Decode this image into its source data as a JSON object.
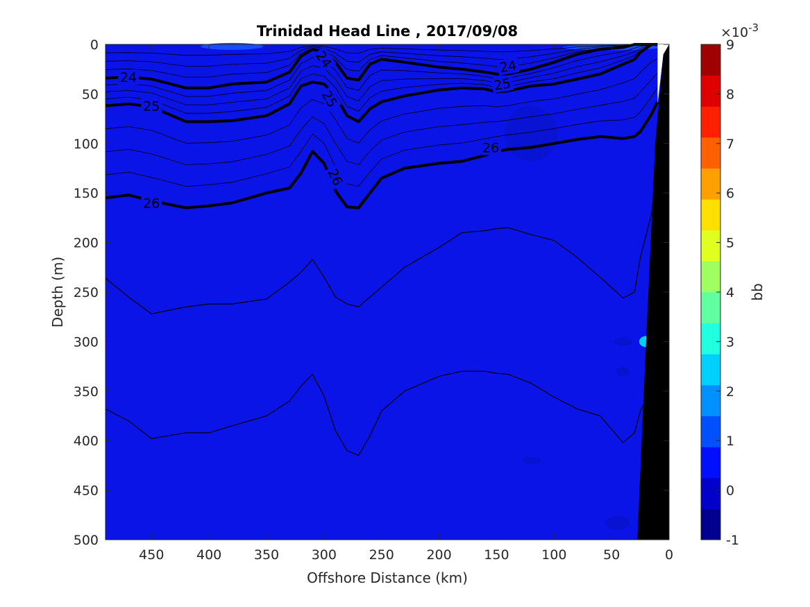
{
  "chart_data": {
    "type": "heatmap",
    "title": "Trinidad Head Line , 2017/09/08",
    "xlabel": "Offshore Distance (km)",
    "ylabel": "Depth (m)",
    "xlim": [
      490,
      0
    ],
    "ylim": [
      0,
      500
    ],
    "x_ticks": [
      450,
      400,
      350,
      300,
      250,
      200,
      150,
      100,
      50,
      0
    ],
    "y_ticks": [
      0,
      50,
      100,
      150,
      200,
      250,
      300,
      350,
      400,
      450,
      500
    ],
    "colorbar": {
      "label": "bb",
      "multiplier": "×10",
      "exponent": "-3",
      "range": [
        -1,
        9
      ],
      "ticks": [
        -1,
        0,
        1,
        2,
        3,
        4,
        5,
        6,
        7,
        8,
        9
      ],
      "levels": [
        "#00008f",
        "#0000c8",
        "#0010ff",
        "#0050ff",
        "#0090ff",
        "#00d0ff",
        "#20ffdf",
        "#60ff9f",
        "#a0ff60",
        "#dfff20",
        "#ffdf00",
        "#ffa000",
        "#ff6000",
        "#ff2000",
        "#df0000",
        "#9f0000"
      ]
    },
    "field_background_value": 0.3,
    "field_background_color": "#0a14e6",
    "surface_highlight_color": "#1a4cff",
    "station_x": [
      490,
      470,
      450,
      420,
      400,
      380,
      350,
      330,
      320,
      310,
      300,
      290,
      280,
      270,
      260,
      250,
      230,
      200,
      180,
      160,
      150,
      140,
      120,
      100,
      80,
      60,
      40,
      30,
      25,
      15,
      10
    ],
    "density_contours": [
      {
        "label": "24",
        "labeled": true,
        "depths": [
          34,
          33,
          35,
          44,
          44,
          40,
          38,
          28,
          12,
          5,
          8,
          18,
          34,
          36,
          20,
          15,
          18,
          23,
          25,
          28,
          30,
          30,
          25,
          18,
          10,
          5,
          3,
          0,
          0,
          0,
          0
        ]
      },
      {
        "label": "25",
        "labeled": true,
        "depths": [
          62,
          60,
          63,
          78,
          78,
          77,
          72,
          60,
          42,
          38,
          40,
          52,
          72,
          78,
          65,
          58,
          52,
          46,
          44,
          45,
          48,
          47,
          42,
          40,
          35,
          30,
          20,
          15,
          8,
          0,
          0
        ]
      },
      {
        "label": "26",
        "labeled": true,
        "depths": [
          155,
          152,
          158,
          165,
          163,
          160,
          150,
          145,
          130,
          108,
          120,
          148,
          164,
          165,
          150,
          135,
          125,
          120,
          118,
          112,
          108,
          106,
          104,
          100,
          96,
          93,
          95,
          93,
          88,
          70,
          58
        ]
      },
      {
        "label": "",
        "labeled": false,
        "depths": [
          236,
          255,
          272,
          265,
          262,
          262,
          257,
          240,
          230,
          217,
          235,
          255,
          262,
          265,
          255,
          245,
          225,
          205,
          190,
          188,
          186,
          185,
          192,
          198,
          215,
          235,
          256,
          250,
          215,
          170,
          115
        ]
      },
      {
        "label": "",
        "labeled": false,
        "depths": [
          368,
          380,
          398,
          392,
          392,
          385,
          375,
          360,
          345,
          333,
          355,
          390,
          410,
          415,
          395,
          370,
          350,
          335,
          330,
          330,
          332,
          333,
          342,
          356,
          368,
          375,
          402,
          392,
          370,
          348,
          300
        ]
      }
    ],
    "bathymetry": {
      "fill": "#000000",
      "top_km": 0,
      "bottom_km": 30
    },
    "annotations": [
      "24",
      "24",
      "24",
      "25",
      "25",
      "25",
      "26",
      "26",
      "26"
    ]
  }
}
